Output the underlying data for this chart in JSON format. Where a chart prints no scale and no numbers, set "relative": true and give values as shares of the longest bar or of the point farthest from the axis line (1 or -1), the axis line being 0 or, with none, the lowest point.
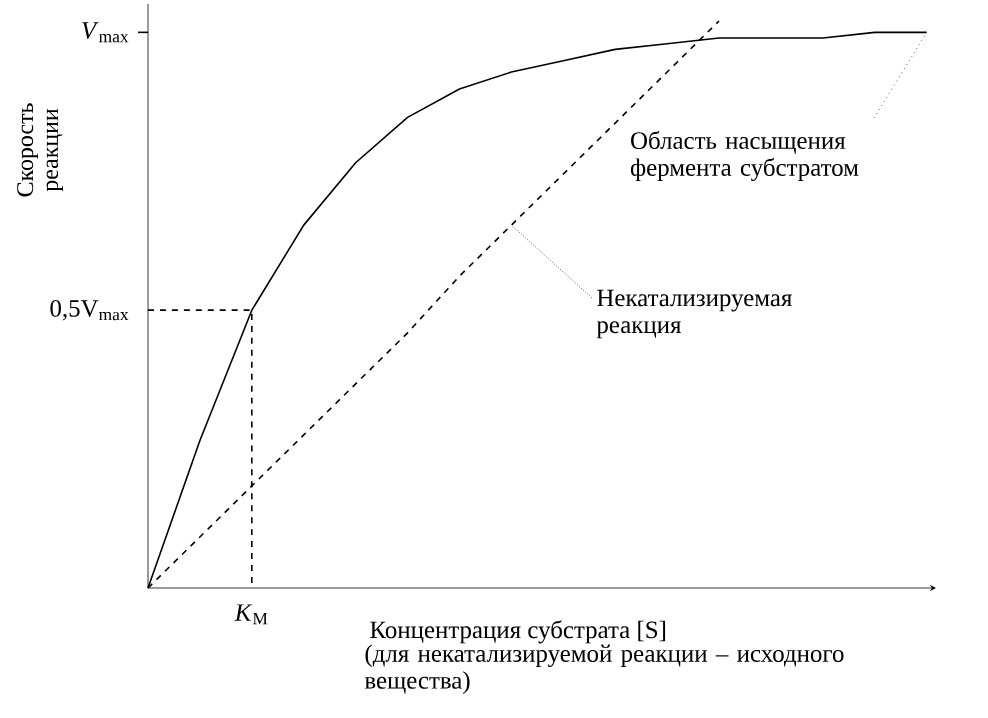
{
  "chart_data": {
    "type": "line",
    "xlabel": "Концентрация субстрата [S]",
    "ylabel": "Скорость реакции",
    "relative": true,
    "categories": [
      null,
      null,
      null,
      null,
      null,
      null,
      null,
      null,
      null,
      null,
      null,
      null,
      null,
      null,
      null,
      null
    ],
    "grid": false,
    "marker": "none",
    "series": [
      {
        "color": "#000000",
        "line_style": "solid",
        "values": [
          0,
          0.26,
          0.49,
          0.64,
          0.75,
          0.83,
          0.88,
          0.91,
          0.93,
          0.95,
          0.96,
          0.97,
          0.97,
          0.97,
          0.98,
          0.98
        ]
      },
      {
        "color": "#000000",
        "line_style": "dashed",
        "values": [
          0,
          0.09,
          0.18,
          0.27,
          0.36,
          0.45,
          0.55,
          0.64,
          0.73,
          0.82,
          0.91,
          1,
          null,
          null,
          null,
          null
        ]
      }
    ],
    "ref_lines": [
      {
        "axis": "y",
        "value": 0.49,
        "line_style": "dashed",
        "color": "#000000"
      }
    ],
    "annotations": [
      "Область насыщения фермента субстратом",
      "Некатализируемая реакция",
      "(для некатализируемой реакции – исходного вещества)",
      "*K*$_{M}$",
      "*V*$_{max}$",
      "0,5V$_{max}$"
    ]
  }
}
